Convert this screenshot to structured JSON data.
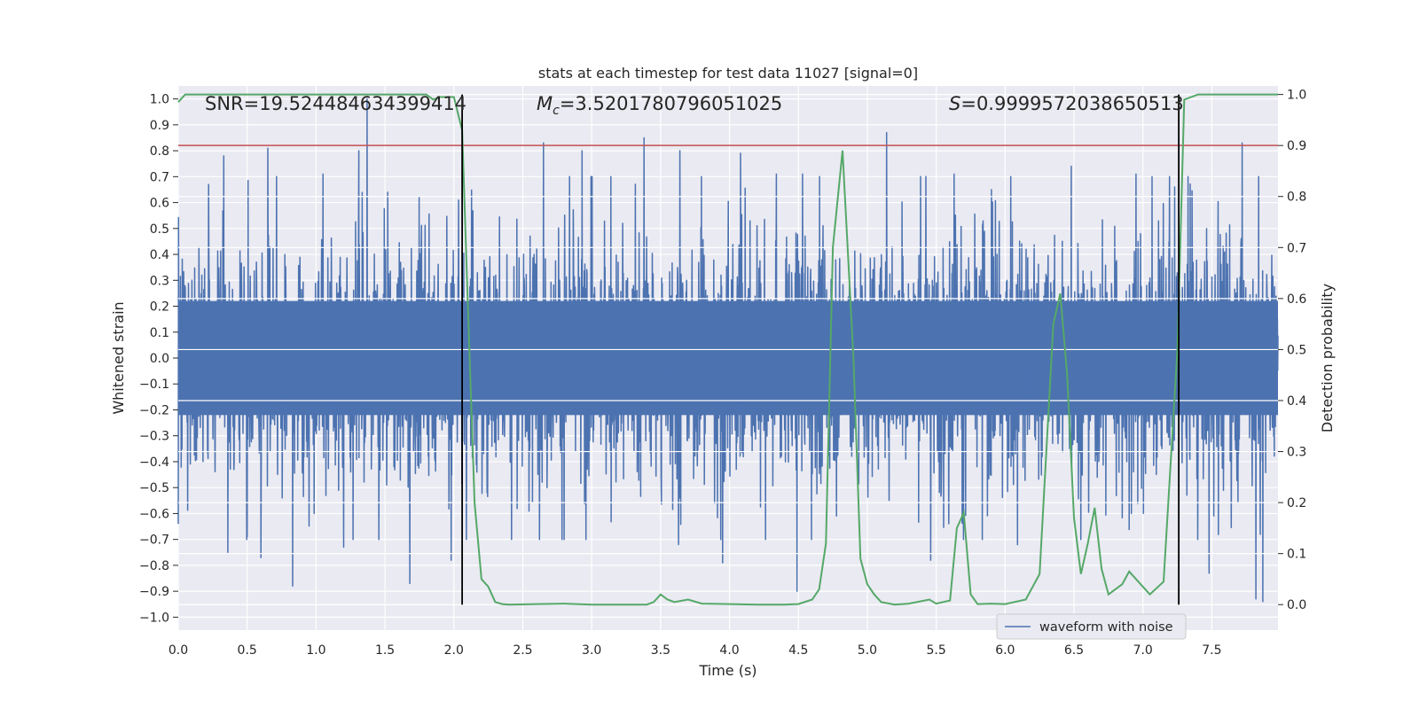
{
  "chart_data": {
    "type": "line",
    "title": "stats at each timestep for test data 11027 [signal=0]",
    "xlabel": "Time (s)",
    "ylabel": "Whitened strain",
    "ylabel_right": "Detection probability",
    "xlim": [
      0.0,
      7.98
    ],
    "ylim": [
      -1.05,
      1.05
    ],
    "ylim_right": [
      -0.05,
      1.0167
    ],
    "x_ticks": [
      0.0,
      0.5,
      1.0,
      1.5,
      2.0,
      2.5,
      3.0,
      3.5,
      4.0,
      4.5,
      5.0,
      5.5,
      6.0,
      6.5,
      7.0,
      7.5
    ],
    "x_tick_labels": [
      "0.0",
      "0.5",
      "1.0",
      "1.5",
      "2.0",
      "2.5",
      "3.0",
      "3.5",
      "4.0",
      "4.5",
      "5.0",
      "5.5",
      "6.0",
      "6.5",
      "7.0",
      "7.5"
    ],
    "y_ticks": [
      1.0,
      0.9,
      0.8,
      0.7,
      0.6,
      0.5,
      0.4,
      0.3,
      0.2,
      0.1,
      0.0,
      -0.1,
      -0.2,
      -0.3,
      -0.4,
      -0.5,
      -0.6,
      -0.7,
      -0.8,
      -0.9,
      -1.0
    ],
    "y_tick_labels": [
      "1.0",
      "0.9",
      "0.8",
      "0.7",
      "0.6",
      "0.5",
      "0.4",
      "0.3",
      "0.2",
      "0.1",
      "0.0",
      "−0.1",
      "−0.2",
      "−0.3",
      "−0.4",
      "−0.5",
      "−0.6",
      "−0.7",
      "−0.8",
      "−0.9",
      "−1.0"
    ],
    "y_right_ticks": [
      1.0,
      0.9,
      0.8,
      0.7,
      0.6,
      0.5,
      0.4,
      0.3,
      0.2,
      0.1,
      0.0
    ],
    "y_right_tick_labels": [
      "1.0",
      "0.9",
      "0.8",
      "0.7",
      "0.6",
      "0.5",
      "0.4",
      "0.3",
      "0.2",
      "0.1",
      "0.0"
    ],
    "annotations": {
      "snr": "SNR=19.524484634399414",
      "mc_symbol": "M",
      "mc_subscript": "c",
      "mc_value": "=3.5201780796051025",
      "s_symbol": "S",
      "s_value": "=0.9999572038650513"
    },
    "threshold_right": 0.9,
    "vertical_lines_x": [
      2.06,
      7.26
    ],
    "waveform": {
      "name": "waveform with noise",
      "color": "#4c72b0",
      "samples": 4096,
      "typical_range": [
        -0.3,
        0.3
      ],
      "peaks": [
        {
          "x": 0.22,
          "y": 0.67
        },
        {
          "x": 0.33,
          "y": 0.78
        },
        {
          "x": 0.65,
          "y": 0.81
        },
        {
          "x": 1.05,
          "y": 0.71
        },
        {
          "x": 1.31,
          "y": 0.8
        },
        {
          "x": 1.37,
          "y": 1.0
        },
        {
          "x": 1.52,
          "y": 0.64
        },
        {
          "x": 2.65,
          "y": 0.83
        },
        {
          "x": 2.93,
          "y": 0.8
        },
        {
          "x": 3.38,
          "y": 0.85
        },
        {
          "x": 3.64,
          "y": 0.8
        },
        {
          "x": 4.08,
          "y": 0.79
        },
        {
          "x": 4.34,
          "y": 0.71
        },
        {
          "x": 4.53,
          "y": 0.71
        },
        {
          "x": 5.14,
          "y": 0.87
        },
        {
          "x": 5.63,
          "y": 0.71
        },
        {
          "x": 6.48,
          "y": 0.74
        },
        {
          "x": 6.95,
          "y": 0.71
        },
        {
          "x": 7.23,
          "y": 0.66
        },
        {
          "x": 7.72,
          "y": 0.83
        },
        {
          "x": 7.82,
          "y": 0.98
        },
        {
          "x": 7.87,
          "y": 0.96
        }
      ],
      "troughs": [
        {
          "x": 0.0,
          "y": -0.64
        },
        {
          "x": 0.36,
          "y": -0.75
        },
        {
          "x": 0.5,
          "y": -0.69
        },
        {
          "x": 0.6,
          "y": -0.77
        },
        {
          "x": 0.83,
          "y": -0.88
        },
        {
          "x": 1.2,
          "y": -0.73
        },
        {
          "x": 1.68,
          "y": -0.87
        },
        {
          "x": 1.98,
          "y": -0.78
        },
        {
          "x": 3.63,
          "y": -0.72
        },
        {
          "x": 3.95,
          "y": -0.79
        },
        {
          "x": 4.49,
          "y": -0.9
        },
        {
          "x": 5.46,
          "y": -0.78
        },
        {
          "x": 6.09,
          "y": -0.72
        },
        {
          "x": 7.48,
          "y": -0.83
        },
        {
          "x": 7.82,
          "y": -0.93
        },
        {
          "x": 7.87,
          "y": -0.94
        }
      ]
    },
    "probability": {
      "color": "#55a868",
      "x": [
        0.0,
        0.05,
        0.1,
        0.2,
        0.4,
        0.6,
        0.8,
        1.0,
        1.2,
        1.4,
        1.6,
        1.8,
        1.85,
        1.9,
        2.0,
        2.06,
        2.1,
        2.15,
        2.2,
        2.25,
        2.3,
        2.35,
        2.4,
        2.6,
        2.8,
        3.0,
        3.2,
        3.4,
        3.45,
        3.5,
        3.55,
        3.6,
        3.7,
        3.8,
        4.0,
        4.2,
        4.4,
        4.5,
        4.6,
        4.65,
        4.7,
        4.75,
        4.82,
        4.9,
        4.95,
        5.0,
        5.05,
        5.1,
        5.2,
        5.3,
        5.45,
        5.5,
        5.6,
        5.65,
        5.7,
        5.75,
        5.8,
        5.9,
        6.0,
        6.15,
        6.25,
        6.35,
        6.4,
        6.45,
        6.5,
        6.55,
        6.6,
        6.65,
        6.7,
        6.75,
        6.85,
        6.9,
        6.95,
        7.05,
        7.15,
        7.25,
        7.3,
        7.4,
        7.5,
        7.6,
        7.8,
        7.98
      ],
      "y": [
        0.985,
        1.0,
        1.0,
        1.0,
        1.0,
        1.0,
        1.0,
        1.0,
        1.0,
        1.0,
        1.0,
        1.0,
        0.99,
        0.995,
        0.995,
        0.93,
        0.6,
        0.2,
        0.05,
        0.035,
        0.005,
        0.001,
        0.0,
        0.001,
        0.002,
        0.0,
        0.0,
        0.0,
        0.005,
        0.02,
        0.01,
        0.005,
        0.01,
        0.002,
        0.001,
        0.0,
        0.0,
        0.001,
        0.01,
        0.03,
        0.12,
        0.7,
        0.89,
        0.48,
        0.09,
        0.04,
        0.02,
        0.005,
        0.0,
        0.002,
        0.01,
        0.002,
        0.008,
        0.15,
        0.18,
        0.02,
        0.001,
        0.002,
        0.001,
        0.01,
        0.06,
        0.55,
        0.61,
        0.45,
        0.17,
        0.06,
        0.12,
        0.19,
        0.07,
        0.02,
        0.04,
        0.065,
        0.05,
        0.02,
        0.045,
        0.5,
        0.99,
        1.0,
        1.0,
        1.0,
        1.0,
        1.0
      ]
    }
  }
}
